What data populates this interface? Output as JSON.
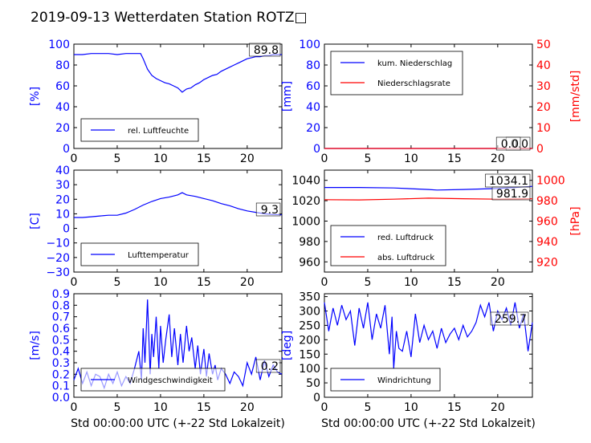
{
  "title": "2019-09-13 Wetterdaten Station ROTZ□",
  "colors": {
    "blue": "#0000ff",
    "red": "#ff0000",
    "light": "#8080ff"
  },
  "chart_data": [
    {
      "type": "line",
      "title": "",
      "xlabel": "",
      "ylabel": "[%]",
      "xlim": [
        0,
        24
      ],
      "ylim": [
        0,
        100
      ],
      "xticks": [
        "0",
        "5",
        "10",
        "15",
        "20"
      ],
      "yticks": [
        "0",
        "20",
        "40",
        "60",
        "80",
        "100"
      ],
      "legend": "bottom-left",
      "value_label": "89.8",
      "series": [
        {
          "name": "rel. Luftfeuchte",
          "color": "#0000ff",
          "x": [
            0,
            1,
            2,
            3,
            4,
            5,
            6,
            7,
            7.7,
            8,
            8.5,
            9,
            9.5,
            10,
            10.5,
            11,
            11.5,
            12,
            12.5,
            13,
            13.5,
            14,
            14.5,
            15,
            15.5,
            16,
            16.5,
            17,
            17.5,
            18,
            18.5,
            19,
            19.5,
            20,
            20.5,
            21,
            21.5,
            22,
            22.5,
            23,
            23.5,
            24
          ],
          "y": [
            90,
            90,
            91,
            91,
            91,
            90,
            91,
            91,
            91,
            86,
            76,
            70,
            67,
            65,
            63,
            62,
            60,
            58,
            54,
            57,
            58,
            61,
            63,
            66,
            68,
            70,
            71,
            74,
            76,
            78,
            80,
            82,
            84,
            86,
            87,
            88,
            88,
            89,
            89,
            90,
            90,
            90
          ]
        }
      ]
    },
    {
      "type": "line",
      "title": "",
      "xlabel": "",
      "ylabel": "[mm]",
      "ylabel_right": "[mm/std]",
      "xlim": [
        0,
        24
      ],
      "ylim": [
        0,
        100
      ],
      "ylim_right": [
        0,
        50
      ],
      "xticks": [
        "0",
        "5",
        "10",
        "15",
        "20"
      ],
      "yticks": [
        "0",
        "20",
        "40",
        "60",
        "80",
        "100"
      ],
      "yticks_right": [
        "0",
        "10",
        "20",
        "30",
        "40",
        "50"
      ],
      "legend": "top-left",
      "value_label": "0.0",
      "value_label_2": "0.0",
      "series": [
        {
          "name": "kum. Niederschlag",
          "color": "#0000ff",
          "x": [
            0,
            24
          ],
          "y": [
            0,
            0
          ]
        },
        {
          "name": "Niederschlagsrate",
          "color": "#ff0000",
          "x": [
            0,
            24
          ],
          "y": [
            0,
            0
          ]
        }
      ]
    },
    {
      "type": "line",
      "title": "",
      "xlabel": "",
      "ylabel": "[C]",
      "xlim": [
        0,
        24
      ],
      "ylim": [
        -30,
        40
      ],
      "xticks": [
        "0",
        "5",
        "10",
        "15",
        "20"
      ],
      "yticks": [
        "−30",
        "−20",
        "−10",
        "0",
        "10",
        "20",
        "30",
        "40"
      ],
      "legend": "bottom-left",
      "value_label": "9.3",
      "series": [
        {
          "name": "Lufttemperatur",
          "color": "#0000ff",
          "x": [
            0,
            1,
            2,
            3,
            4,
            5,
            6,
            7,
            8,
            9,
            10,
            11,
            12,
            12.5,
            13,
            14,
            15,
            16,
            17,
            18,
            19,
            20,
            21,
            22,
            23,
            24
          ],
          "y": [
            7.5,
            7.5,
            8,
            8.5,
            9,
            9,
            10.5,
            13,
            16,
            18.5,
            20.5,
            21.5,
            23,
            24.5,
            23,
            22,
            20.5,
            19,
            17,
            15.5,
            13.5,
            12,
            11,
            10,
            9.5,
            9.3
          ]
        }
      ]
    },
    {
      "type": "line",
      "title": "",
      "xlabel": "",
      "ylabel": "",
      "ylabel_right": "[hPa]",
      "xlim": [
        0,
        24
      ],
      "ylim": [
        950,
        1050
      ],
      "ylim_right": [
        910,
        1010
      ],
      "xticks": [
        "0",
        "5",
        "10",
        "15",
        "20"
      ],
      "yticks": [
        "960",
        "980",
        "1000",
        "1020",
        "1040"
      ],
      "yticks_right": [
        "920",
        "940",
        "960",
        "980",
        "1000"
      ],
      "legend": "bottom-left",
      "value_label": "1034.1",
      "value_label_2": "981.9",
      "series": [
        {
          "name": "red. Luftdruck",
          "color": "#0000ff",
          "x": [
            0,
            4,
            8,
            12,
            13,
            16,
            20,
            22,
            24
          ],
          "y": [
            1033,
            1033,
            1032.5,
            1031,
            1030.5,
            1031,
            1032,
            1033,
            1034.1
          ]
        },
        {
          "name": "abs. Luftdruck",
          "color": "#ff0000",
          "x": [
            0,
            4,
            8,
            12,
            16,
            20,
            24
          ],
          "y": [
            981,
            980.8,
            981.5,
            982.5,
            982,
            981.5,
            981.9
          ]
        }
      ]
    },
    {
      "type": "line",
      "title": "",
      "xlabel": "Std 00:00:00 UTC (+-22 Std Lokalzeit)",
      "ylabel": "[m/s]",
      "xlim": [
        0,
        24
      ],
      "ylim": [
        0,
        0.9
      ],
      "xticks": [
        "0",
        "5",
        "10",
        "15",
        "20"
      ],
      "yticks": [
        "0.0",
        "0.1",
        "0.2",
        "0.3",
        "0.4",
        "0.5",
        "0.6",
        "0.7",
        "0.8",
        "0.9"
      ],
      "legend": "bottom-left",
      "value_label": "0.2",
      "series": [
        {
          "name": "Windgeschwindigkeit",
          "color": "#0000ff",
          "x": [
            0,
            0.5,
            1,
            1.5,
            2,
            2.5,
            3,
            3.5,
            4,
            4.5,
            5,
            5.5,
            6,
            6.5,
            7,
            7.5,
            7.8,
            8,
            8.2,
            8.5,
            8.8,
            9,
            9.2,
            9.5,
            9.8,
            10,
            10.3,
            10.6,
            11,
            11.3,
            11.6,
            12,
            12.3,
            12.6,
            13,
            13.3,
            13.6,
            14,
            14.3,
            14.6,
            15,
            15.3,
            15.6,
            16,
            16.3,
            16.6,
            17,
            17.5,
            18,
            18.5,
            19,
            19.5,
            20,
            20.5,
            21,
            21.5,
            22,
            22.5,
            23,
            23.5,
            24
          ],
          "y": [
            0.15,
            0.25,
            0.12,
            0.22,
            0.1,
            0.2,
            0.18,
            0.08,
            0.2,
            0.12,
            0.22,
            0.1,
            0.18,
            0.12,
            0.25,
            0.4,
            0.15,
            0.6,
            0.3,
            0.85,
            0.2,
            0.55,
            0.35,
            0.7,
            0.25,
            0.62,
            0.3,
            0.5,
            0.72,
            0.35,
            0.6,
            0.28,
            0.55,
            0.3,
            0.62,
            0.4,
            0.52,
            0.25,
            0.45,
            0.2,
            0.42,
            0.18,
            0.38,
            0.2,
            0.28,
            0.15,
            0.25,
            0.2,
            0.12,
            0.22,
            0.18,
            0.1,
            0.3,
            0.2,
            0.35,
            0.15,
            0.32,
            0.18,
            0.28,
            0.22,
            0.2
          ]
        }
      ]
    },
    {
      "type": "line",
      "title": "",
      "xlabel": "Std 00:00:00 UTC (+-22 Std Lokalzeit)",
      "ylabel": "[deg]",
      "xlim": [
        0,
        24
      ],
      "ylim": [
        0,
        360
      ],
      "xticks": [
        "0",
        "5",
        "10",
        "15",
        "20"
      ],
      "yticks": [
        "0",
        "50",
        "100",
        "150",
        "200",
        "250",
        "300",
        "350"
      ],
      "legend": "bottom-left",
      "value_label": "259.7",
      "series": [
        {
          "name": "Windrichtung",
          "color": "#0000ff",
          "x": [
            0,
            0.5,
            1,
            1.5,
            2,
            2.5,
            3,
            3.5,
            4,
            4.5,
            5,
            5.5,
            6,
            6.5,
            7,
            7.5,
            7.8,
            8,
            8.3,
            8.6,
            9,
            9.5,
            10,
            10.5,
            11,
            11.5,
            12,
            12.5,
            13,
            13.5,
            14,
            14.5,
            15,
            15.5,
            16,
            16.5,
            17,
            17.5,
            18,
            18.5,
            19,
            19.5,
            20,
            20.5,
            21,
            21.5,
            22,
            22.5,
            23,
            23.5,
            24
          ],
          "y": [
            330,
            230,
            310,
            250,
            320,
            270,
            300,
            180,
            310,
            240,
            330,
            200,
            290,
            240,
            320,
            150,
            280,
            100,
            230,
            170,
            160,
            230,
            140,
            290,
            190,
            250,
            200,
            230,
            170,
            240,
            190,
            220,
            240,
            200,
            250,
            210,
            230,
            260,
            320,
            280,
            330,
            230,
            300,
            270,
            310,
            250,
            330,
            240,
            290,
            160,
            260
          ]
        }
      ]
    }
  ]
}
